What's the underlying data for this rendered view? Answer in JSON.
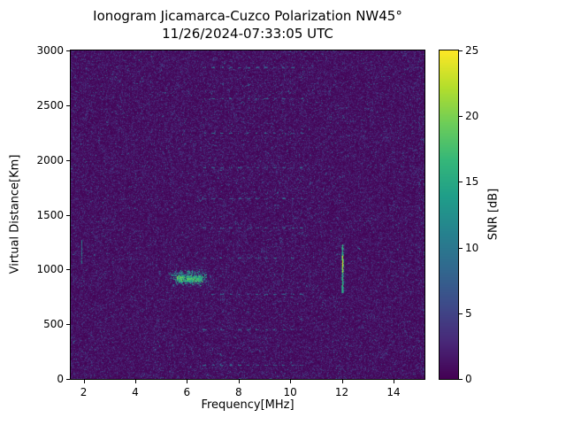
{
  "figure": {
    "title_line1": "Ionogram Jicamarca-Cuzco Polarization NW45°",
    "title_line2": "11/26/2024-07:33:05 UTC"
  },
  "chart_data": {
    "type": "heatmap",
    "title": "Ionogram Jicamarca-Cuzco Polarization NW45°",
    "subtitle": "11/26/2024-07:33:05 UTC",
    "xlabel": "Frequency[MHz]",
    "ylabel": "Virtual Distance[Km]",
    "colorbar_label": "SNR [dB]",
    "colormap": "viridis",
    "xlim": [
      1.5,
      15.2
    ],
    "ylim": [
      0,
      3000
    ],
    "x_ticks": [
      2,
      4,
      6,
      8,
      10,
      12,
      14
    ],
    "y_ticks": [
      0,
      500,
      1000,
      1500,
      2000,
      2500,
      3000
    ],
    "colorbar_ticks": [
      0,
      5,
      10,
      15,
      20,
      25
    ],
    "snr_range_db": [
      0,
      25
    ],
    "noise": {
      "mean_db": 1.3,
      "speckle_prob": 0.012,
      "speckle_db": [
        4,
        10
      ]
    },
    "rfi_band": {
      "x_range_mhz": [
        6.8,
        10.6
      ],
      "extra_speckle_prob": 0.008,
      "speckle_db": [
        4,
        9
      ]
    },
    "edge_band": {
      "x_range_mhz": [
        14.9,
        15.2
      ],
      "extra_speckle_prob": 0.04,
      "speckle_db": [
        3,
        9
      ]
    },
    "interference_lines": {
      "x_range_mhz": [
        6.6,
        10.6
      ],
      "y_km": [
        130,
        450,
        780,
        1105,
        1380,
        1650,
        1930,
        2250,
        2560,
        2850
      ],
      "snr_db": [
        5,
        12
      ]
    },
    "ionospheric_echo": {
      "x_range_mhz": [
        5.2,
        6.9
      ],
      "y_range_km": [
        850,
        1010
      ],
      "core": {
        "x_range_mhz": [
          5.6,
          6.6
        ],
        "y_km": 920,
        "spread_km": 35,
        "snr_db": [
          12,
          20
        ]
      },
      "snr_db": [
        6,
        16
      ]
    },
    "strong_echo": {
      "x_mhz": 12.0,
      "y_range_km": [
        790,
        1230
      ],
      "peak_y_range_km": [
        980,
        1130
      ],
      "snr_db": [
        10,
        25
      ]
    },
    "secondary_stripe": {
      "x_mhz": 1.9,
      "y_range_km": [
        1060,
        1270
      ],
      "snr_db": [
        7,
        14
      ]
    }
  }
}
